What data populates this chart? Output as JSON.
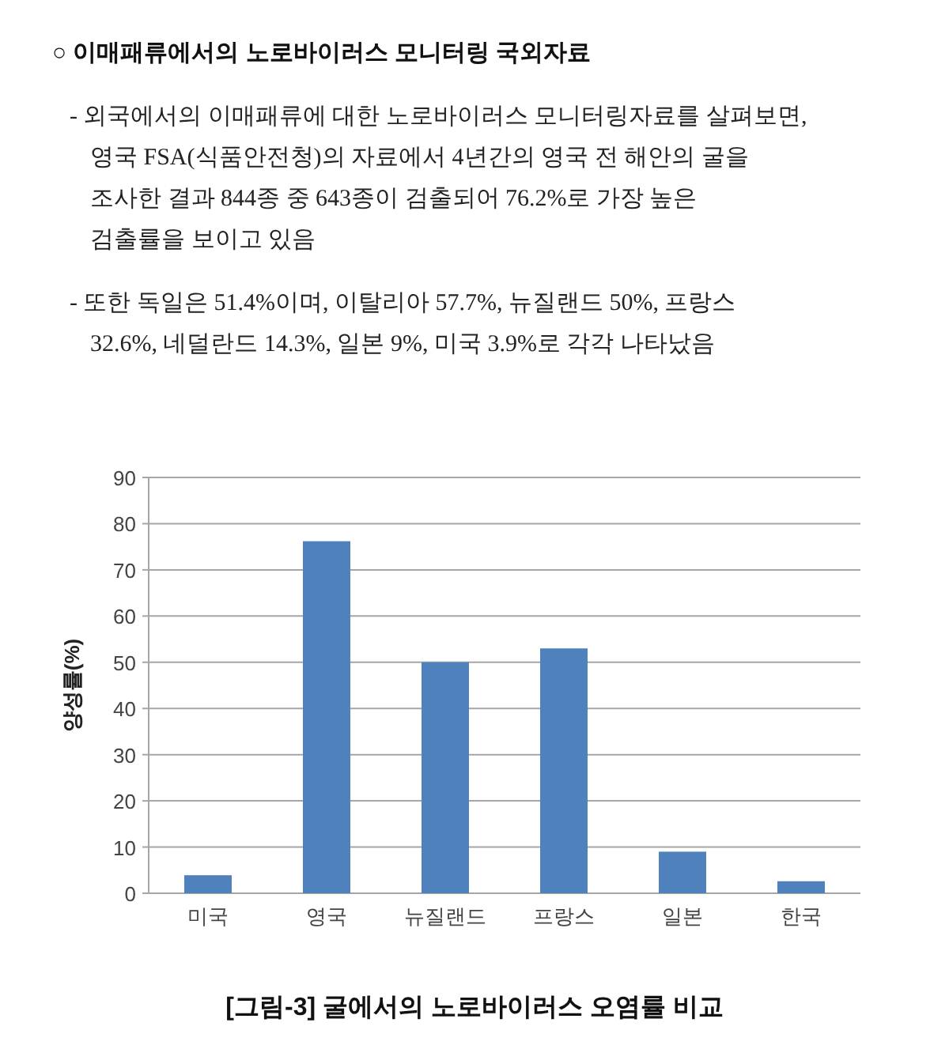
{
  "chart_data": {
    "type": "bar",
    "title": "○ 이매패류에서의 노로바이러스 모니터링 국외자료",
    "annotations": [
      "- 외국에서의 이매패류에 대한 노로바이러스 모니터링자료를 살펴보면,",
      "영국 FSA(식품안전청)의 자료에서 4년간의 영국 전 해안의 굴을",
      "조사한 결과 844종 중 643종이 검출되어 76.2%로 가장 높은",
      "검출률을 보이고 있음",
      "- 또한 독일은 51.4%이며, 이탈리아 57.7%, 뉴질랜드 50%, 프랑스",
      "32.6%, 네덜란드 14.3%, 일본 9%, 미국 3.9%로 각각 나타났음",
      "[그림-3] 굴에서의 노로바이러스 오염률 비교"
    ],
    "ylabel": "양성률(%)",
    "categories": [
      "미국",
      "영국",
      "뉴질랜드",
      "프랑스",
      "일본",
      "한국"
    ],
    "values": [
      3.9,
      76.2,
      50,
      53,
      9,
      2.6
    ],
    "color": "#4f81bd",
    "ylim": [
      0,
      90
    ],
    "yticks": [
      0,
      10,
      20,
      30,
      40,
      50,
      60,
      70,
      80,
      90
    ],
    "grid": "y"
  }
}
